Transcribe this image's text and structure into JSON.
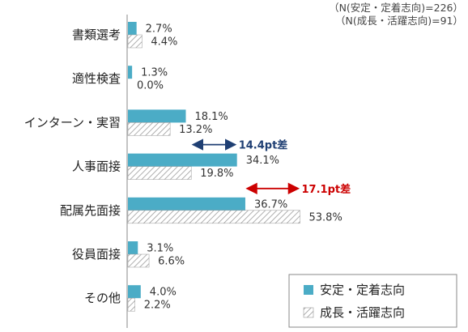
{
  "notes": [
    "（N(安定・定着志向)=226）",
    "（N(成長・活躍志向)=91）"
  ],
  "colors": {
    "stable": "#4bacc6",
    "growth_hatch": "#9a9a9a",
    "diff_blue": "#1f3f73",
    "diff_red": "#cc0000",
    "axis": "#888888"
  },
  "chart_data": {
    "type": "bar",
    "orientation": "horizontal",
    "categories": [
      "書類選考",
      "適性検査",
      "インターン・実習",
      "人事面接",
      "配属先面接",
      "役員面接",
      "その他"
    ],
    "series": [
      {
        "name": "安定・定着志向",
        "values": [
          2.7,
          1.3,
          18.1,
          34.1,
          36.7,
          3.1,
          4.0
        ],
        "labels": [
          "2.7%",
          "1.3%",
          "18.1%",
          "34.1%",
          "36.7%",
          "3.1%",
          "4.0%"
        ]
      },
      {
        "name": "成長・活躍志向",
        "values": [
          4.4,
          0.0,
          13.2,
          19.8,
          53.8,
          6.6,
          2.2
        ],
        "labels": [
          "4.4%",
          "0.0%",
          "13.2%",
          "19.8%",
          "53.8%",
          "6.6%",
          "2.2%"
        ]
      }
    ],
    "annotations": [
      {
        "text": "14.4pt差",
        "category": "人事面接",
        "color": "blue"
      },
      {
        "text": "17.1pt差",
        "category": "配属先面接",
        "color": "red"
      }
    ],
    "legend_position": "bottom-right"
  }
}
